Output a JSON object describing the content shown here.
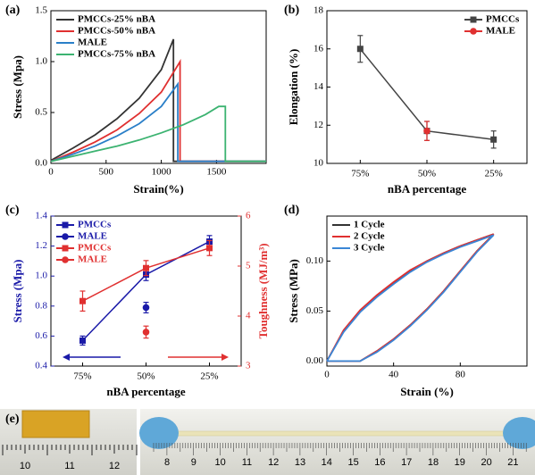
{
  "chart_data": [
    {
      "type": "line",
      "panel": "(a)",
      "x_label": "Strain(%)",
      "y_label": "Stress (Mpa)",
      "xlim": [
        0,
        1950
      ],
      "xticks": [
        0,
        500,
        1000,
        1500
      ],
      "ylim": [
        0,
        1.5
      ],
      "yticks": [
        {
          "value": 0,
          "label": "0.0"
        },
        0.5,
        {
          "value": 1,
          "label": "1.0"
        },
        1.5
      ],
      "legend": "upper left",
      "series": [
        {
          "name": "PMCCs-25% nBA",
          "color": "#333333",
          "marker": "none",
          "x": [
            0,
            200,
            400,
            600,
            800,
            1000,
            1110,
            1110,
            1950
          ],
          "values": [
            0.03,
            0.15,
            0.28,
            0.44,
            0.64,
            0.92,
            1.22,
            0.02,
            0.02
          ]
        },
        {
          "name": "PMCCs-50% nBA",
          "color": "#e03030",
          "marker": "none",
          "x": [
            0,
            200,
            400,
            600,
            800,
            1000,
            1170,
            1170,
            1950
          ],
          "values": [
            0.02,
            0.11,
            0.21,
            0.33,
            0.49,
            0.7,
            1.0,
            0.02,
            0.02
          ]
        },
        {
          "name": "MALE",
          "color": "#2a7fc8",
          "marker": "none",
          "x": [
            0,
            200,
            400,
            600,
            800,
            1000,
            1150,
            1150,
            1950
          ],
          "values": [
            0.02,
            0.09,
            0.17,
            0.27,
            0.39,
            0.56,
            0.78,
            0.02,
            0.02
          ]
        },
        {
          "name": "PMCCs-75% nBA",
          "color": "#3cb371",
          "marker": "none",
          "x": [
            0,
            200,
            400,
            600,
            800,
            1000,
            1200,
            1400,
            1520,
            1580,
            1580,
            1950
          ],
          "values": [
            0.02,
            0.07,
            0.12,
            0.17,
            0.23,
            0.3,
            0.38,
            0.48,
            0.56,
            0.56,
            0.02,
            0.02
          ]
        }
      ]
    },
    {
      "type": "line",
      "panel": "(b)",
      "x_label": "nBA percentage",
      "y_label": "Elongation (%)",
      "categories": [
        "75%",
        "50%",
        "25%"
      ],
      "ylim": [
        10,
        18
      ],
      "yticks": [
        10,
        12,
        14,
        16,
        18
      ],
      "legend": "upper right",
      "series": [
        {
          "name": "PMCCs",
          "color": "#444444",
          "marker": "square",
          "values": [
            16.0,
            11.7,
            11.25
          ],
          "errors": [
            0.7,
            0.5,
            0.45
          ]
        },
        {
          "name": "MALE",
          "color": "#e03030",
          "marker": "circle",
          "values": [
            null,
            11.7,
            null
          ],
          "errors": [
            null,
            0.5,
            null
          ]
        }
      ]
    },
    {
      "type": "line",
      "panel": "(c)",
      "x_label": "nBA percentage",
      "y_label": "Stress (Mpa)",
      "y2_label": "Toughness (MJ/m³)",
      "categories": [
        "75%",
        "50%",
        "25%"
      ],
      "ylim": [
        0.4,
        1.4
      ],
      "yticks": [
        0.4,
        0.6,
        0.8,
        {
          "value": 1,
          "label": "1.0"
        },
        1.2,
        1.4
      ],
      "y2lim": [
        3,
        6
      ],
      "y2ticks": [
        3,
        4,
        5,
        6
      ],
      "y_color": "#1a1aa8",
      "y2_color": "#e03030",
      "legend": "upper left",
      "series": [
        {
          "name": "PMCCs",
          "color": "#1a1aa8",
          "marker": "square",
          "values": [
            0.57,
            1.01,
            1.23
          ],
          "errors": [
            0.03,
            0.04,
            0.04
          ]
        },
        {
          "name": "MALE",
          "color": "#1a1aa8",
          "marker": "circle",
          "values": [
            null,
            0.79,
            null
          ],
          "errors": [
            null,
            0.035,
            null
          ]
        },
        {
          "name": "PMCCs",
          "color": "#e03030",
          "marker": "square",
          "axis": "y2",
          "values": [
            4.3,
            4.96,
            5.36
          ],
          "errors": [
            0.2,
            0.15,
            0.15
          ]
        },
        {
          "name": "MALE",
          "color": "#e03030",
          "marker": "circle",
          "axis": "y2",
          "values": [
            null,
            3.68,
            null
          ],
          "errors": [
            null,
            0.12,
            null
          ]
        }
      ]
    },
    {
      "type": "line",
      "panel": "(d)",
      "x_label": "Strain (%)",
      "y_label": "Stress (MPa)",
      "xlim": [
        0,
        120
      ],
      "xticks": [
        0,
        40,
        80
      ],
      "ylim": [
        -0.005,
        0.145
      ],
      "yticks": [
        {
          "value": 0,
          "label": "0.00"
        },
        0.05,
        {
          "value": 0.1,
          "label": "0.10"
        }
      ],
      "legend": "upper left",
      "series": [
        {
          "name": "1 Cycle",
          "color": "#333333",
          "marker": "none",
          "x": [
            0,
            10,
            20,
            30,
            40,
            50,
            60,
            70,
            80,
            90,
            100,
            90,
            80,
            70,
            60,
            50,
            40,
            30,
            20,
            0
          ],
          "values": [
            0,
            0.03,
            0.05,
            0.065,
            0.078,
            0.09,
            0.1,
            0.108,
            0.115,
            0.121,
            0.127,
            0.11,
            0.09,
            0.07,
            0.052,
            0.036,
            0.022,
            0.01,
            0,
            0
          ]
        },
        {
          "name": "2 Cycle",
          "color": "#e03030",
          "marker": "none",
          "x": [
            0,
            10,
            20,
            30,
            40,
            50,
            60,
            70,
            80,
            90,
            100,
            90,
            80,
            70,
            60,
            50,
            40,
            30,
            20,
            0
          ],
          "values": [
            0,
            0.031,
            0.051,
            0.066,
            0.079,
            0.091,
            0.1,
            0.108,
            0.115,
            0.121,
            0.127,
            0.11,
            0.09,
            0.07,
            0.052,
            0.036,
            0.022,
            0.01,
            0,
            0
          ]
        },
        {
          "name": "3 Cycle",
          "color": "#3a86d6",
          "marker": "none",
          "x": [
            0,
            10,
            20,
            30,
            40,
            50,
            60,
            70,
            80,
            90,
            100,
            90,
            80,
            70,
            60,
            50,
            40,
            30,
            20,
            0
          ],
          "values": [
            0,
            0.029,
            0.049,
            0.064,
            0.077,
            0.089,
            0.099,
            0.107,
            0.114,
            0.12,
            0.126,
            0.109,
            0.089,
            0.069,
            0.051,
            0.035,
            0.021,
            0.009,
            0,
            0
          ]
        }
      ]
    }
  ],
  "photos": {
    "panel": "(e)",
    "left_ruler": [
      "10",
      "11",
      "12"
    ],
    "right_ruler": [
      "8",
      "9",
      "10",
      "11",
      "12",
      "13",
      "14",
      "15",
      "16",
      "17",
      "18",
      "19",
      "20",
      "21"
    ]
  }
}
